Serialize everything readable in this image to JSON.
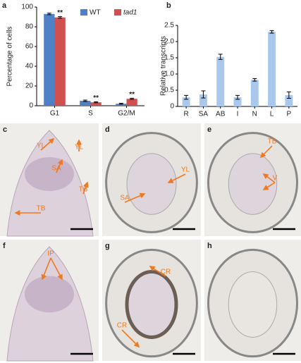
{
  "chart_data": [
    {
      "type": "bar",
      "panel_label": "a",
      "ylabel": "Percentage of cells",
      "categories": [
        "G1",
        "S",
        "G2/M"
      ],
      "series": [
        {
          "name": "WT",
          "color": "#4f81c7",
          "values": [
            93,
            5,
            2
          ],
          "errors": [
            0.8,
            0.7,
            0.5
          ]
        },
        {
          "name": "tad1",
          "color": "#d0504f",
          "values": [
            89.5,
            3.5,
            7
          ],
          "errors": [
            0.8,
            0.5,
            0.6
          ],
          "annotations": [
            "**",
            "**",
            "**"
          ]
        }
      ],
      "ylim": [
        0,
        100
      ],
      "yticks": [
        0,
        20,
        40,
        60,
        80,
        100
      ]
    },
    {
      "type": "bar",
      "panel_label": "b",
      "ylabel": "Relative transcripts",
      "categories": [
        "R",
        "SA",
        "AB",
        "I",
        "N",
        "L",
        "P"
      ],
      "values": [
        0.28,
        0.37,
        1.53,
        0.28,
        0.82,
        2.3,
        0.35
      ],
      "errors": [
        0.06,
        0.11,
        0.08,
        0.06,
        0.04,
        0.04,
        0.1
      ],
      "color": "#a9c8ec",
      "ylim": [
        0,
        2.5
      ],
      "yticks": [
        0,
        0.5,
        {
          "value": 1,
          "label": "1.0"
        },
        1.5,
        {
          "value": 2,
          "label": "2.0"
        },
        2.5
      ]
    }
  ],
  "figure": {
    "panels": [
      {
        "label": "c",
        "annotations": [
          "YL",
          "YL",
          "SA",
          "TB",
          "TB"
        ]
      },
      {
        "label": "d",
        "annotations": [
          "YL",
          "SA"
        ]
      },
      {
        "label": "e",
        "annotations": [
          "TB",
          "V"
        ]
      },
      {
        "label": "f",
        "annotations": [
          "IP"
        ]
      },
      {
        "label": "g",
        "annotations": [
          "CR",
          "CR"
        ]
      },
      {
        "label": "h",
        "annotations": []
      }
    ]
  }
}
